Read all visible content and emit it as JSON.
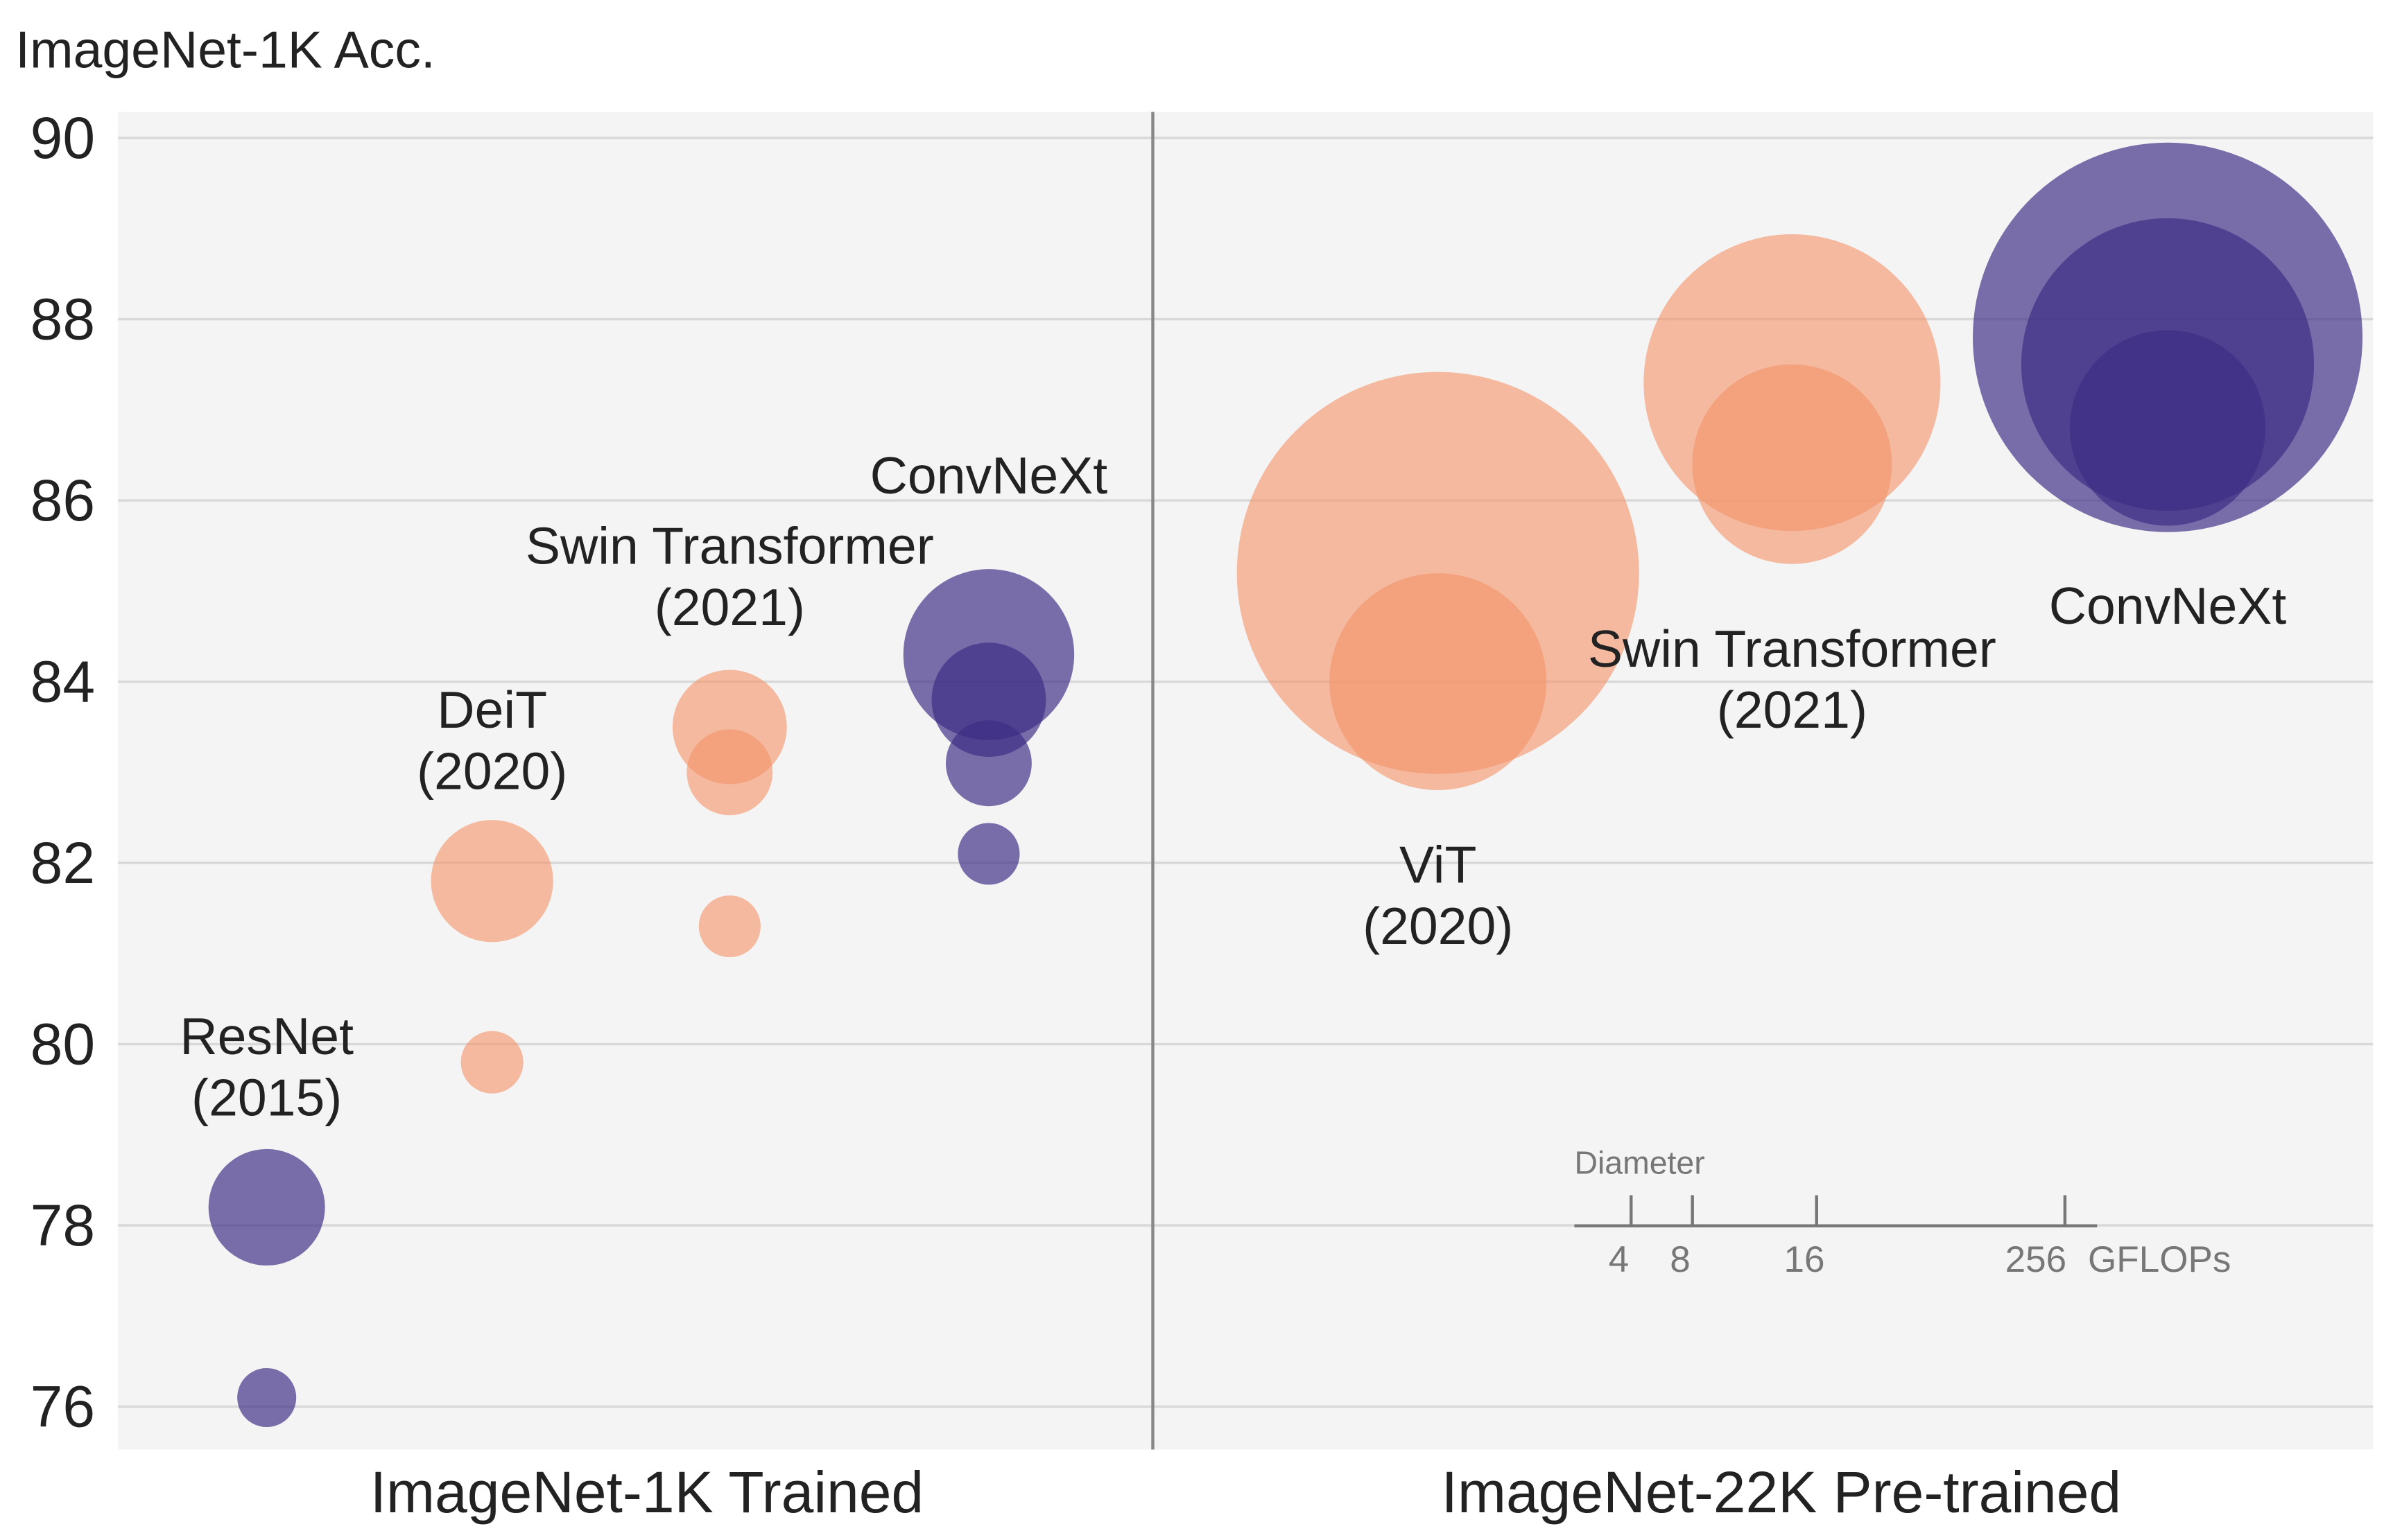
{
  "chart_data": {
    "type": "scatter",
    "ylabel": "ImageNet-1K Acc.",
    "ylim": [
      75.5,
      90.3
    ],
    "yticks": [
      "76",
      "78",
      "80",
      "82",
      "84",
      "86",
      "88",
      "90"
    ],
    "grid": true,
    "x_categories": [
      "ImageNet-1K Trained",
      "ImageNet-22K Pre-trained"
    ],
    "colors": {
      "transformer": "#f4956a",
      "convnet": "#3d2c84",
      "background": "#f4f4f4"
    },
    "groups": [
      {
        "name": "ResNet",
        "year": "(2015)",
        "setting": "ImageNet-1K Trained",
        "family": "convnet",
        "points": [
          {
            "acc": 78.2,
            "gflops": 16
          },
          {
            "acc": 76.1,
            "gflops": 4.1
          }
        ]
      },
      {
        "name": "DeiT",
        "year": "(2020)",
        "setting": "ImageNet-1K Trained",
        "family": "transformer",
        "points": [
          {
            "acc": 81.8,
            "gflops": 17.6
          },
          {
            "acc": 79.8,
            "gflops": 4.6
          }
        ]
      },
      {
        "name": "Swin Transformer",
        "year": "(2021)",
        "setting": "ImageNet-1K Trained",
        "family": "transformer",
        "points": [
          {
            "acc": 83.5,
            "gflops": 15.4
          },
          {
            "acc": 83.0,
            "gflops": 8.7
          },
          {
            "acc": 81.3,
            "gflops": 4.5
          }
        ]
      },
      {
        "name": "ConvNeXt",
        "year": "",
        "setting": "ImageNet-1K Trained",
        "family": "convnet",
        "points": [
          {
            "acc": 84.3,
            "gflops": 34.4
          },
          {
            "acc": 83.8,
            "gflops": 15.4
          },
          {
            "acc": 83.1,
            "gflops": 8.7
          },
          {
            "acc": 82.1,
            "gflops": 4.5
          }
        ]
      },
      {
        "name": "ViT",
        "year": "(2020)",
        "setting": "ImageNet-22K Pre-trained",
        "family": "transformer",
        "points": [
          {
            "acc": 85.2,
            "gflops": 190.7
          },
          {
            "acc": 84.0,
            "gflops": 55.5
          }
        ]
      },
      {
        "name": "Swin Transformer",
        "year": "(2021)",
        "setting": "ImageNet-22K Pre-trained",
        "family": "transformer",
        "points": [
          {
            "acc": 87.3,
            "gflops": 103.9
          },
          {
            "acc": 86.4,
            "gflops": 47.0
          }
        ]
      },
      {
        "name": "ConvNeXt",
        "year": "",
        "setting": "ImageNet-22K Pre-trained",
        "family": "convnet",
        "points": [
          {
            "acc": 87.8,
            "gflops": 179.0
          },
          {
            "acc": 87.5,
            "gflops": 101.0
          },
          {
            "acc": 86.8,
            "gflops": 45.1
          }
        ]
      }
    ],
    "size_legend": {
      "title": "Diameter",
      "ticks": [
        "4",
        "8",
        "16",
        "256"
      ],
      "unit": "GFLOPs"
    }
  }
}
